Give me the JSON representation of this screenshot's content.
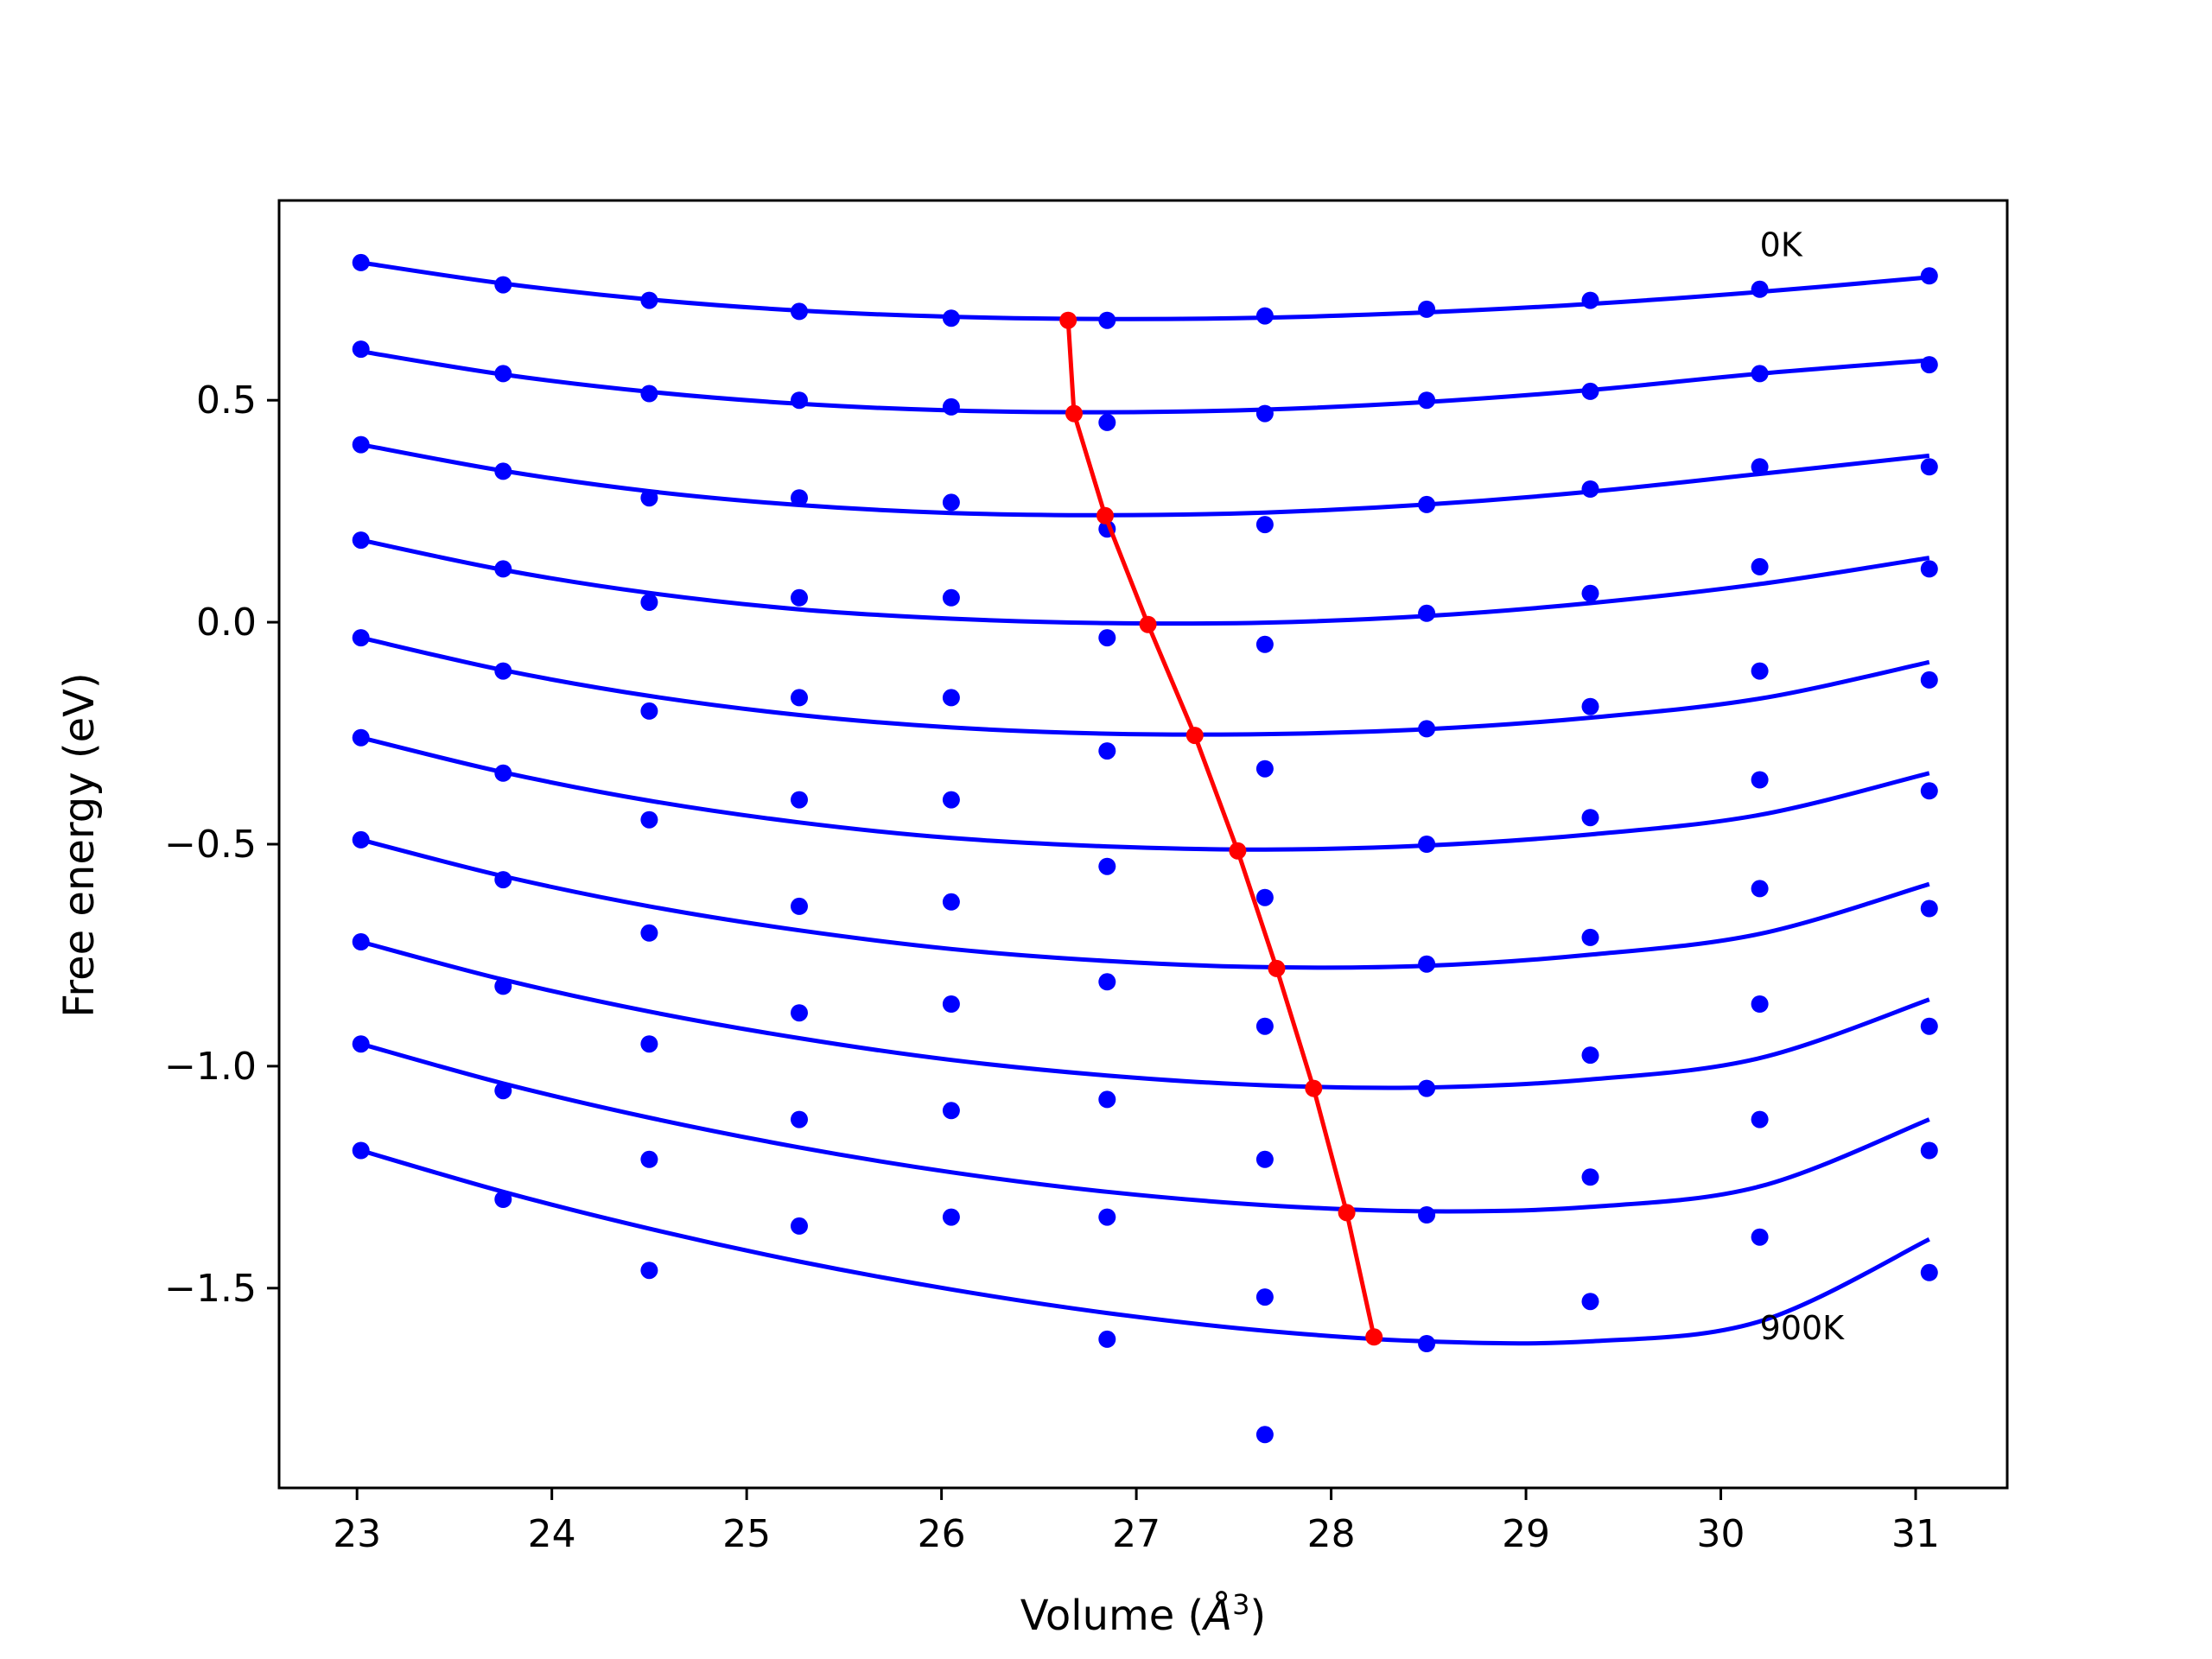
{
  "chart_data": {
    "type": "line",
    "xlabel": "Volume",
    "xlabel_unit_base": "Å",
    "xlabel_unit_exp": "3",
    "ylabel": "Free energy (eV)",
    "xlim": [
      22.6,
      31.47
    ],
    "ylim": [
      -1.95,
      0.95
    ],
    "x_ticks": [
      23,
      24,
      25,
      26,
      27,
      28,
      29,
      30,
      31
    ],
    "y_ticks": [
      0.5,
      0.0,
      -0.5,
      -1.0,
      -1.5
    ],
    "y_tick_labels": [
      "0.5",
      "0.0",
      "−0.5",
      "−1.0",
      "−1.5"
    ],
    "grid": false,
    "annotations": [
      {
        "text": "0K",
        "x": 30.2,
        "y": 0.85
      },
      {
        "text": "900K",
        "x": 30.2,
        "y": -1.59
      }
    ],
    "colors": {
      "curves": "#0000ff",
      "minima": "#ff0000",
      "axes": "#000000"
    },
    "x": [
      23.02,
      23.75,
      24.5,
      25.27,
      26.05,
      26.85,
      27.66,
      28.49,
      29.33,
      30.2,
      31.07
    ],
    "series": [
      {
        "y": [
          0.81,
          0.76,
          0.725,
          0.7,
          0.685,
          0.68,
          0.69,
          0.705,
          0.725,
          0.75,
          0.78
        ],
        "fit": [
          0.81,
          0.763,
          0.727,
          0.702,
          0.688,
          0.683,
          0.686,
          0.698,
          0.717,
          0.744,
          0.777
        ]
      },
      {
        "y": [
          0.615,
          0.56,
          0.515,
          0.5,
          0.485,
          0.45,
          0.47,
          0.5,
          0.52,
          0.56,
          0.58
        ],
        "fit": [
          0.61,
          0.558,
          0.519,
          0.492,
          0.477,
          0.473,
          0.479,
          0.496,
          0.523,
          0.56,
          0.59
        ]
      },
      {
        "y": [
          0.4,
          0.34,
          0.28,
          0.28,
          0.27,
          0.21,
          0.22,
          0.265,
          0.3,
          0.35,
          0.35
        ],
        "fit": [
          0.4,
          0.341,
          0.295,
          0.264,
          0.246,
          0.241,
          0.247,
          0.265,
          0.294,
          0.334,
          0.375
        ]
      },
      {
        "y": [
          0.185,
          0.12,
          0.045,
          0.055,
          0.055,
          -0.035,
          -0.05,
          0.02,
          0.065,
          0.125,
          0.12
        ],
        "fit": [
          0.185,
          0.118,
          0.066,
          0.029,
          0.008,
          -0.002,
          -0.001,
          0.014,
          0.043,
          0.086,
          0.145
        ]
      },
      {
        "y": [
          -0.035,
          -0.11,
          -0.2,
          -0.17,
          -0.17,
          -0.29,
          -0.33,
          -0.24,
          -0.19,
          -0.11,
          -0.13
        ],
        "fit": [
          -0.035,
          -0.108,
          -0.166,
          -0.209,
          -0.237,
          -0.251,
          -0.252,
          -0.241,
          -0.215,
          -0.172,
          -0.09
        ]
      },
      {
        "y": [
          -0.26,
          -0.34,
          -0.445,
          -0.4,
          -0.4,
          -0.55,
          -0.62,
          -0.5,
          -0.44,
          -0.355,
          -0.38
        ],
        "fit": [
          -0.26,
          -0.338,
          -0.402,
          -0.451,
          -0.486,
          -0.505,
          -0.512,
          -0.503,
          -0.478,
          -0.434,
          -0.34
        ]
      },
      {
        "y": [
          -0.49,
          -0.58,
          -0.7,
          -0.64,
          -0.63,
          -0.81,
          -0.91,
          -0.77,
          -0.71,
          -0.6,
          -0.645
        ],
        "fit": [
          -0.49,
          -0.572,
          -0.64,
          -0.694,
          -0.736,
          -0.763,
          -0.777,
          -0.774,
          -0.749,
          -0.702,
          -0.59
        ]
      },
      {
        "y": [
          -0.72,
          -0.82,
          -0.95,
          -0.88,
          -0.86,
          -1.075,
          -1.21,
          -1.05,
          -0.975,
          -0.86,
          -0.91
        ],
        "fit": [
          -0.72,
          -0.805,
          -0.877,
          -0.937,
          -0.986,
          -1.021,
          -1.043,
          -1.048,
          -1.03,
          -0.982,
          -0.85
        ]
      },
      {
        "y": [
          -0.95,
          -1.055,
          -1.21,
          -1.12,
          -1.1,
          -1.34,
          -1.52,
          -1.335,
          -1.25,
          -1.12,
          -1.19
        ],
        "fit": [
          -0.95,
          -1.039,
          -1.116,
          -1.183,
          -1.239,
          -1.283,
          -1.313,
          -1.327,
          -1.317,
          -1.271,
          -1.12
        ]
      },
      {
        "y": [
          -1.19,
          -1.3,
          -1.46,
          -1.36,
          -1.34,
          -1.615,
          -1.83,
          -1.625,
          -1.53,
          -1.385,
          -1.465
        ],
        "fit": [
          -1.19,
          -1.283,
          -1.366,
          -1.44,
          -1.503,
          -1.556,
          -1.596,
          -1.62,
          -1.62,
          -1.575,
          -1.39
        ]
      }
    ],
    "minima_line": {
      "x": [
        26.65,
        26.68,
        26.84,
        27.06,
        27.3,
        27.52,
        27.72,
        27.91,
        28.08,
        28.22
      ],
      "y": [
        0.68,
        0.47,
        0.24,
        -0.005,
        -0.255,
        -0.515,
        -0.78,
        -1.05,
        -1.33,
        -1.61
      ]
    }
  }
}
